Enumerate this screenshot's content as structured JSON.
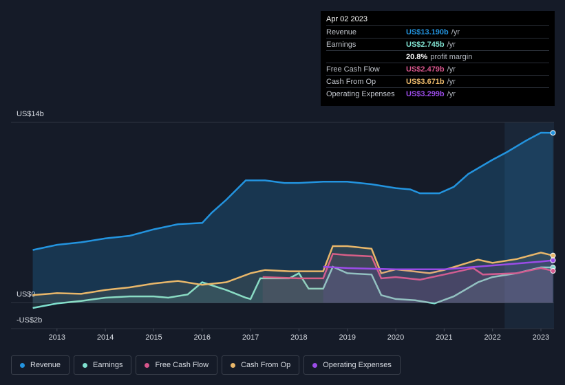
{
  "chart_data": {
    "type": "line",
    "xlim": [
      2012.05,
      2023.27
    ],
    "xticks": [
      2013,
      2014,
      2015,
      2016,
      2017,
      2018,
      2019,
      2020,
      2021,
      2022,
      2023
    ],
    "ylim": [
      -2.0,
      14.0
    ],
    "yticks": [
      {
        "value": 14,
        "label": "US$14b"
      },
      {
        "value": 0,
        "label": "US$0"
      },
      {
        "value": -2,
        "label": "-US$2b"
      }
    ],
    "series": [
      {
        "name": "Revenue",
        "color": "#2394df",
        "x": [
          2012.5,
          2013,
          2013.5,
          2014,
          2014.5,
          2015,
          2015.5,
          2016,
          2016.2,
          2016.5,
          2016.9,
          2017.3,
          2017.7,
          2018,
          2018.5,
          2019,
          2019.5,
          2020,
          2020.3,
          2020.5,
          2020.9,
          2021.2,
          2021.5,
          2022,
          2022.3,
          2022.7,
          2023,
          2023.25
        ],
        "values": [
          4.1,
          4.5,
          4.7,
          5.0,
          5.2,
          5.7,
          6.1,
          6.2,
          7.0,
          8.0,
          9.5,
          9.5,
          9.3,
          9.3,
          9.4,
          9.4,
          9.2,
          8.9,
          8.8,
          8.5,
          8.5,
          9.0,
          10.0,
          11.1,
          11.7,
          12.6,
          13.2,
          13.19
        ]
      },
      {
        "name": "Earnings",
        "color": "#7fe0cf",
        "x": [
          2012.5,
          2013,
          2013.5,
          2014,
          2014.5,
          2015,
          2015.3,
          2015.7,
          2016,
          2016.5,
          2016.9,
          2017,
          2017.2,
          2017.8,
          2018,
          2018.2,
          2018.5,
          2018.7,
          2019,
          2019.5,
          2019.7,
          2020,
          2020.4,
          2020.8,
          2021.2,
          2021.7,
          2022,
          2022.5,
          2023,
          2023.25
        ],
        "values": [
          -0.4,
          -0.05,
          0.15,
          0.4,
          0.5,
          0.5,
          0.4,
          0.65,
          1.6,
          1.0,
          0.4,
          0.3,
          1.9,
          1.9,
          2.3,
          1.1,
          1.1,
          2.8,
          2.3,
          2.2,
          0.6,
          0.3,
          0.2,
          -0.05,
          0.5,
          1.6,
          2.0,
          2.3,
          2.75,
          2.745
        ]
      },
      {
        "name": "Free Cash Flow",
        "color": "#d6558b",
        "x": [
          2017.25,
          2018,
          2018.5,
          2018.7,
          2019,
          2019.5,
          2019.7,
          2020,
          2020.5,
          2021,
          2021.6,
          2021.8,
          2022.5,
          2023,
          2023.25
        ],
        "values": [
          2.0,
          1.9,
          1.9,
          3.8,
          3.7,
          3.6,
          1.9,
          2.0,
          1.8,
          2.2,
          2.7,
          2.2,
          2.3,
          2.7,
          2.479
        ]
      },
      {
        "name": "Cash From Op",
        "color": "#e9b76a",
        "x": [
          2012.5,
          2013,
          2013.5,
          2014,
          2014.5,
          2015,
          2015.5,
          2016,
          2016.5,
          2017,
          2017.3,
          2017.8,
          2018.5,
          2018.7,
          2019,
          2019.5,
          2019.7,
          2020,
          2020.7,
          2021,
          2021.7,
          2022,
          2022.5,
          2023,
          2023.25
        ],
        "values": [
          0.6,
          0.75,
          0.7,
          1.0,
          1.2,
          1.5,
          1.7,
          1.4,
          1.6,
          2.3,
          2.55,
          2.45,
          2.45,
          4.4,
          4.4,
          4.2,
          2.3,
          2.6,
          2.3,
          2.55,
          3.35,
          3.1,
          3.4,
          3.9,
          3.671
        ]
      },
      {
        "name": "Operating Expenses",
        "color": "#9b4ce8",
        "x": [
          2018.5,
          2019,
          2020,
          2021,
          2022,
          2023,
          2023.25
        ],
        "values": [
          2.8,
          2.7,
          2.6,
          2.6,
          2.9,
          3.2,
          3.299
        ]
      }
    ],
    "tooltip": {
      "date": "Apr 02 2023",
      "rows": [
        {
          "label": "Revenue",
          "value": "US$13.190b",
          "unit": "/yr"
        },
        {
          "label": "Earnings",
          "value": "US$2.745b",
          "unit": "/yr"
        },
        {
          "label": "Free Cash Flow",
          "value": "US$2.479b",
          "unit": "/yr"
        },
        {
          "label": "Cash From Op",
          "value": "US$3.671b",
          "unit": "/yr"
        },
        {
          "label": "Operating Expenses",
          "value": "US$3.299b",
          "unit": "/yr"
        }
      ],
      "margin": {
        "value": "20.8%",
        "label": "profit margin"
      }
    }
  }
}
